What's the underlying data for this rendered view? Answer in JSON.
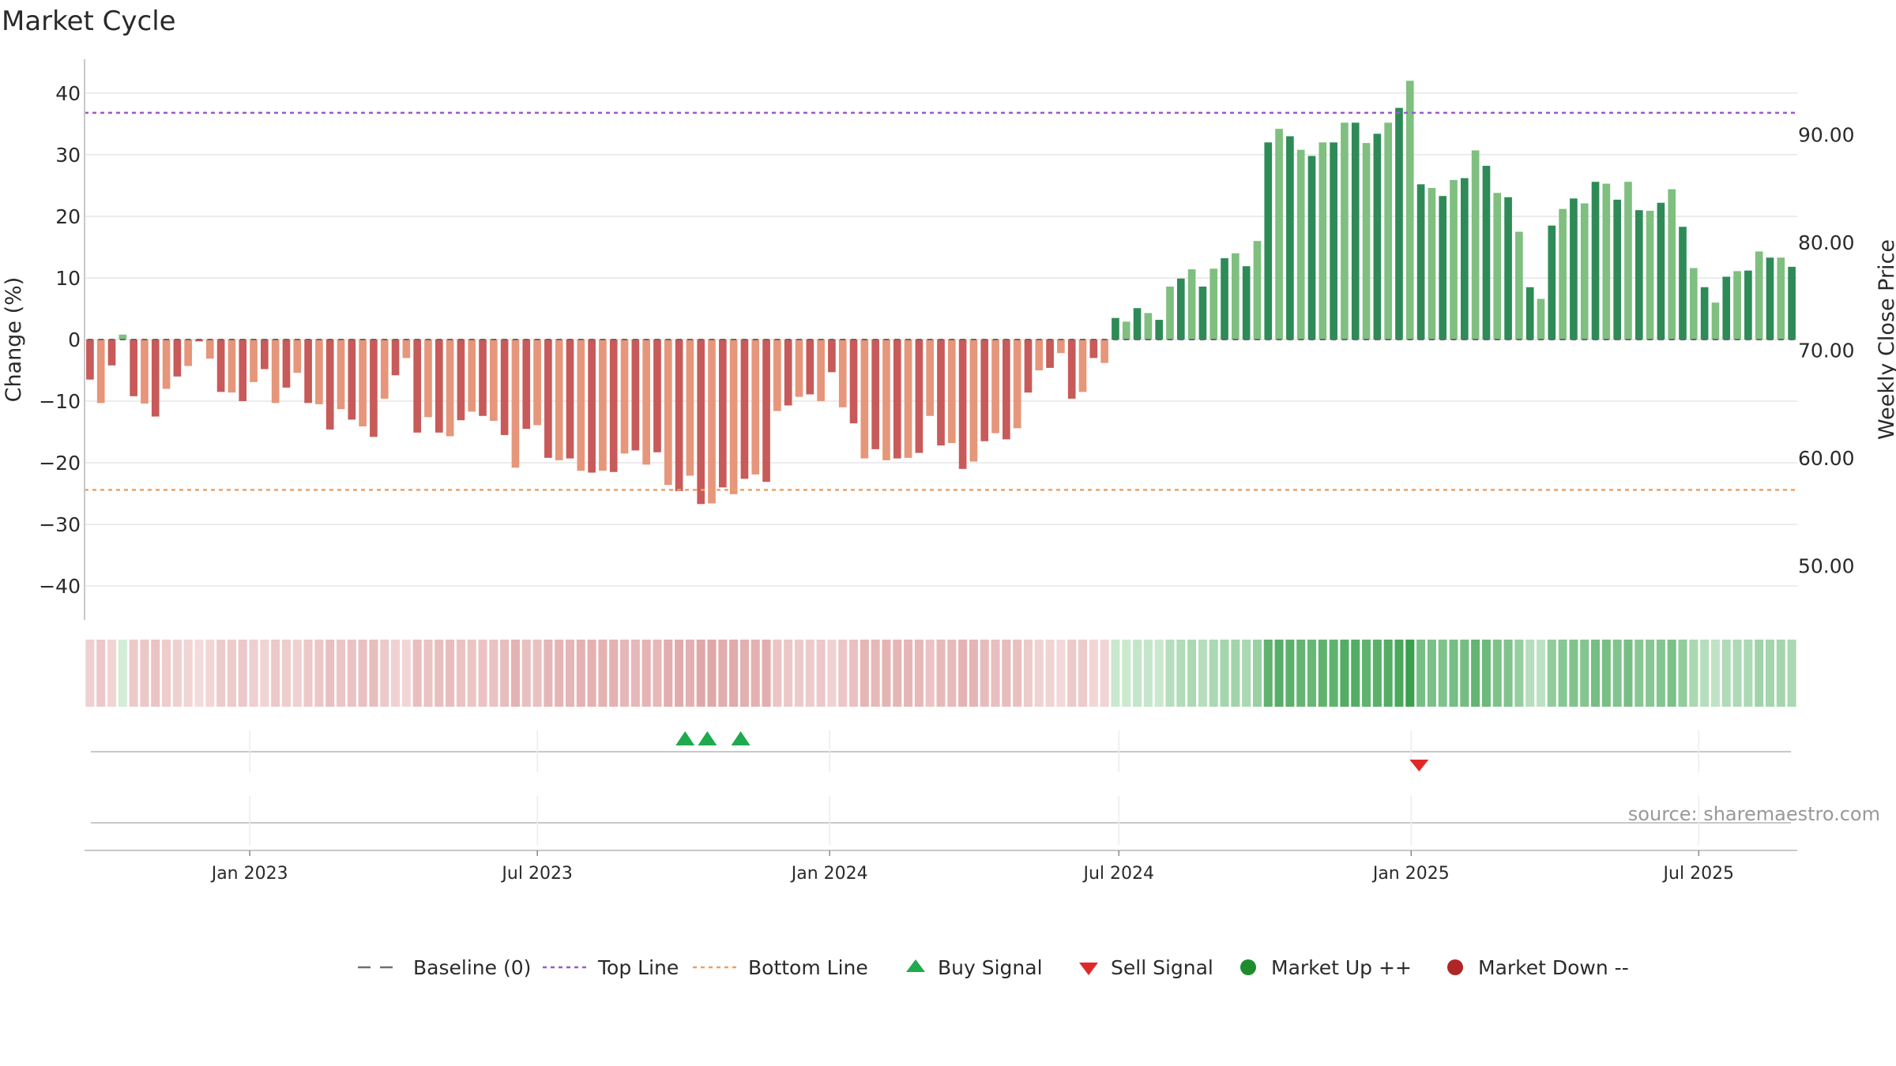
{
  "chart_data": {
    "type": "bar",
    "title": "Market Cycle",
    "ylabel": "Change (%)",
    "y2label": "Weekly Close Price",
    "ylim": [
      -45.5,
      45.5
    ],
    "y_ticks": [
      40,
      30,
      20,
      10,
      0,
      -10,
      -20,
      -30,
      -40
    ],
    "y_tick_labels": [
      "40",
      "30",
      "20",
      "10",
      "0",
      "−10",
      "−20",
      "−30",
      "−40"
    ],
    "y2lim": [
      45,
      97
    ],
    "y2_ticks": [
      90,
      80,
      70,
      60,
      50
    ],
    "y2_tick_labels": [
      "90.00",
      "80.00",
      "70.00",
      "60.00",
      "50.00"
    ],
    "x_start": "2022-09-19",
    "x_end": "2025-09-01",
    "x_ticks": [
      "2023-01-01",
      "2023-07-01",
      "2024-01-01",
      "2024-07-01",
      "2025-01-01",
      "2025-07-01"
    ],
    "x_tick_labels": [
      "Jan 2023",
      "Jul 2023",
      "Jan 2024",
      "Jul 2024",
      "Jan 2025",
      "Jul 2025"
    ],
    "top_line": 36.8,
    "bottom_line": -24.4,
    "baseline": 0,
    "grid": true,
    "legend_position": "bottom",
    "series": [
      {
        "name": "Change (%)",
        "values": [
          -6.5,
          -10.3,
          -4.2,
          0.8,
          -9.2,
          -10.4,
          -12.5,
          -8.0,
          -6.0,
          -4.3,
          -0.3,
          -3.1,
          -8.5,
          -8.6,
          -10.0,
          -6.9,
          -4.8,
          -10.3,
          -7.8,
          -5.4,
          -10.3,
          -10.5,
          -14.6,
          -11.3,
          -13.0,
          -14.1,
          -15.8,
          -9.6,
          -5.8,
          -3.0,
          -15.1,
          -12.6,
          -15.1,
          -15.7,
          -13.1,
          -11.7,
          -12.4,
          -13.2,
          -15.5,
          -20.8,
          -14.5,
          -13.9,
          -19.2,
          -19.6,
          -19.3,
          -21.3,
          -21.6,
          -21.3,
          -21.5,
          -18.5,
          -18.0,
          -20.3,
          -18.3,
          -23.6,
          -24.6,
          -22.1,
          -26.7,
          -26.6,
          -24.0,
          -25.1,
          -22.6,
          -21.9,
          -23.1,
          -11.6,
          -10.7,
          -9.3,
          -8.9,
          -10.0,
          -5.3,
          -11.0,
          -13.6,
          -19.3,
          -17.8,
          -19.6,
          -19.3,
          -19.2,
          -18.4,
          -12.4,
          -17.2,
          -16.8,
          -21.0,
          -19.8,
          -16.5,
          -15.2,
          -16.2,
          -14.4,
          -8.6,
          -5.0,
          -4.6,
          -2.2,
          -9.6,
          -8.5,
          -3.0,
          -3.8,
          3.5,
          2.9,
          5.1,
          4.3,
          3.2,
          8.6,
          9.9,
          11.4,
          8.6,
          11.5,
          13.2,
          14.0,
          11.9,
          16.0,
          32.0,
          34.2,
          33.0,
          30.8,
          29.8,
          32.0,
          32.0,
          35.2,
          35.2,
          31.9,
          33.4,
          35.2,
          37.6,
          42.0,
          25.2,
          24.6,
          23.3,
          25.9,
          26.2,
          30.7,
          28.2,
          23.8,
          23.1,
          17.5,
          8.5,
          6.6,
          18.5,
          21.2,
          22.9,
          22.1,
          25.6,
          25.3,
          22.7,
          25.6,
          21.0,
          20.9,
          22.2,
          24.4,
          18.3,
          11.6,
          8.5,
          6.0,
          10.2,
          11.1,
          11.2,
          14.3,
          13.3,
          13.3,
          11.8
        ]
      }
    ],
    "buy_signals": [
      "2023-10-02",
      "2023-10-16",
      "2023-11-06"
    ],
    "sell_signals": [
      "2025-01-06"
    ],
    "market_up_points": [],
    "market_down_points": [],
    "legend": [
      {
        "key": "baseline",
        "label": "Baseline (0)",
        "color": "#707070"
      },
      {
        "key": "top",
        "label": "Top Line",
        "color": "#9b59d0"
      },
      {
        "key": "bottom",
        "label": "Bottom Line",
        "color": "#f0a060"
      },
      {
        "key": "buy",
        "label": "Buy Signal",
        "color": "#1faa4d"
      },
      {
        "key": "sell",
        "label": "Sell Signal",
        "color": "#e02828"
      },
      {
        "key": "up",
        "label": "Market Up ++",
        "color": "#1e8c2e"
      },
      {
        "key": "down",
        "label": "Market Down --",
        "color": "#b02525"
      }
    ],
    "source": "source: sharemaestro.com",
    "colors": {
      "neg_dark": "#c85a5a",
      "neg_light": "#e6967a",
      "pos_dark": "#2e8b57",
      "pos_light": "#7fbf7f",
      "grid": "#e6e6e6",
      "axis": "#c8c8c8"
    }
  }
}
